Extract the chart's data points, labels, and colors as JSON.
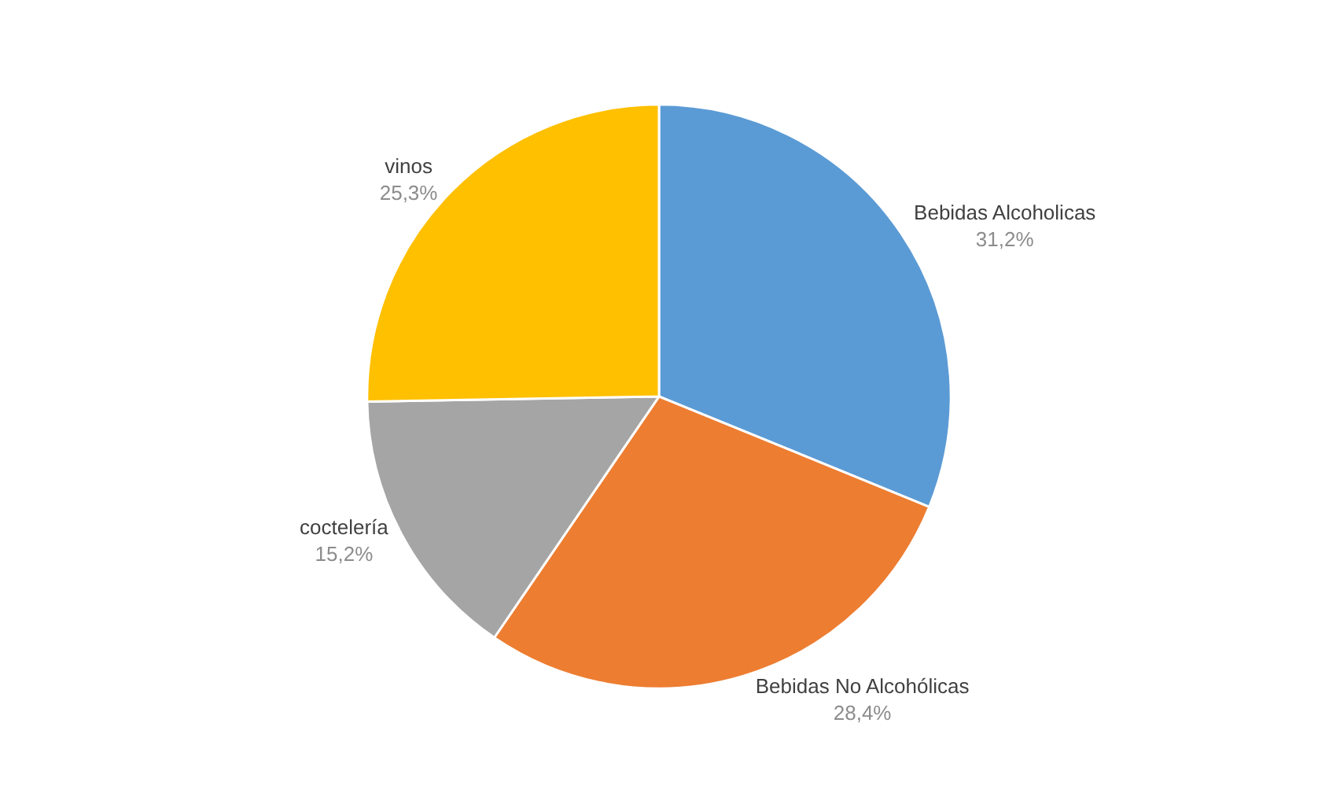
{
  "chart_data": {
    "type": "pie",
    "categories": [
      "Bebidas Alcoholicas",
      "Bebidas No Alcohólicas",
      "coctelería",
      "vinos"
    ],
    "values": [
      31.2,
      28.4,
      15.2,
      25.3
    ],
    "colors": [
      "#5b9bd5",
      "#ed7d31",
      "#a5a5a5",
      "#ffc000"
    ],
    "value_labels": [
      "31,2%",
      "28,4%",
      "15,2%",
      "25,3%"
    ],
    "legend": false
  }
}
